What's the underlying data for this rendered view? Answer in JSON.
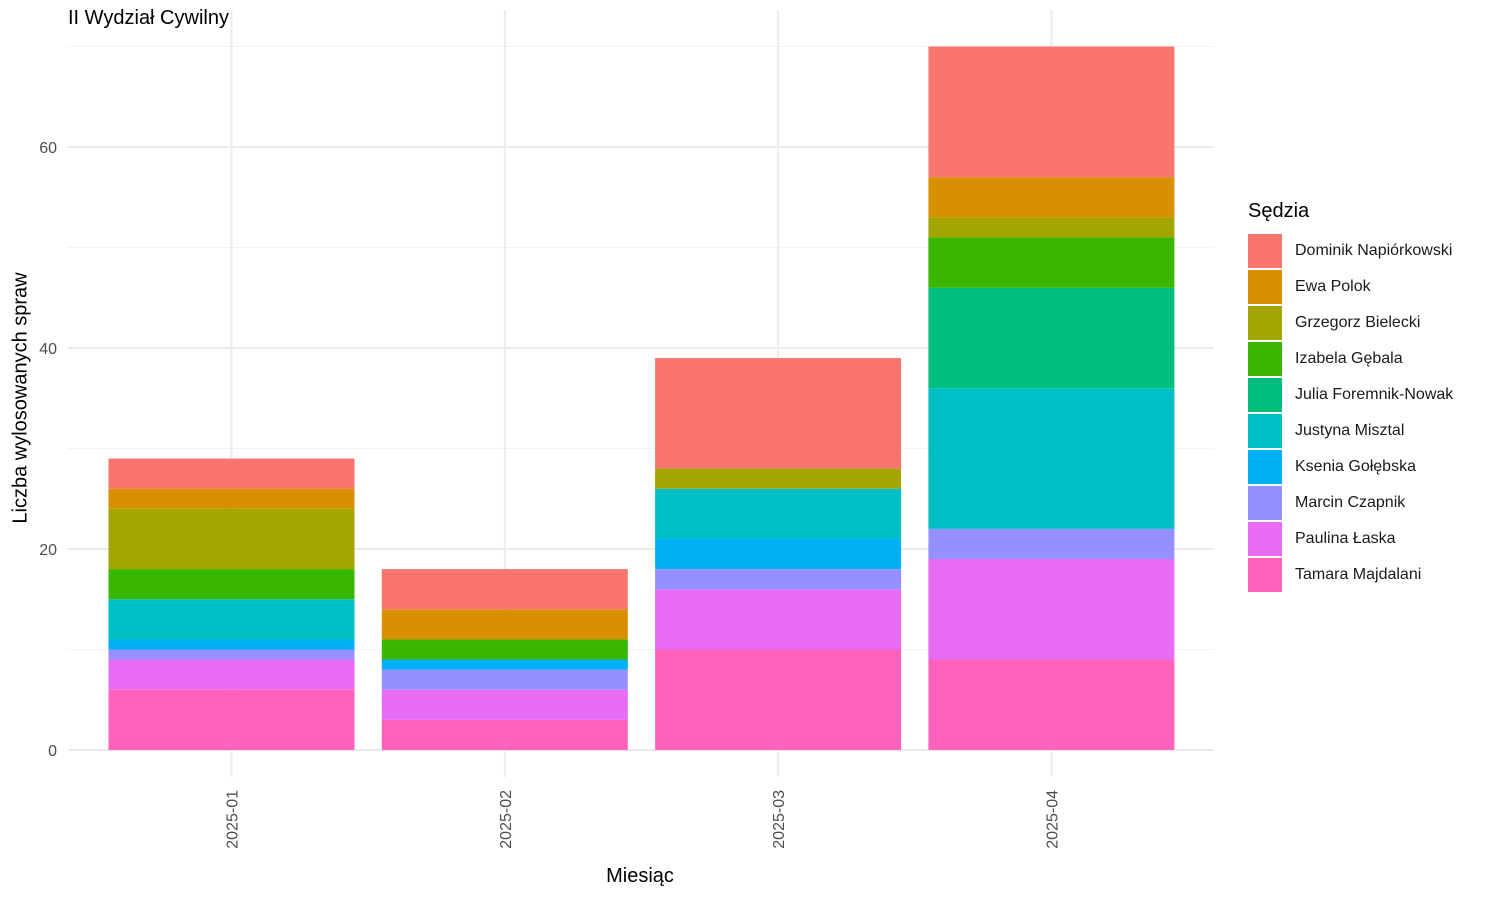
{
  "chart_data": {
    "type": "bar",
    "stacked": true,
    "title": "II Wydział Cywilny",
    "xlabel": "Miesiąc",
    "ylabel": "Liczba wylosowanych spraw",
    "categories": [
      "2025-01",
      "2025-02",
      "2025-03",
      "2025-04"
    ],
    "ylim": [
      0,
      72
    ],
    "yticks": [
      0,
      20,
      40,
      60
    ],
    "grid": true,
    "legend_title": "Sędzia",
    "legend_position": "right",
    "series": [
      {
        "name": "Dominik Napiórkowski",
        "color": "#F8766D",
        "values": [
          3,
          4,
          11,
          13
        ]
      },
      {
        "name": "Ewa Polok",
        "color": "#D89000",
        "values": [
          2,
          3,
          0,
          4
        ]
      },
      {
        "name": "Grzegorz Bielecki",
        "color": "#A3A500",
        "values": [
          6,
          0,
          2,
          2
        ]
      },
      {
        "name": "Izabela Gębala",
        "color": "#39B600",
        "values": [
          3,
          2,
          0,
          5
        ]
      },
      {
        "name": "Julia Foremnik-Nowak",
        "color": "#00BF7D",
        "values": [
          0,
          0,
          0,
          10
        ]
      },
      {
        "name": "Justyna Misztal",
        "color": "#00BFC4",
        "values": [
          4,
          0,
          5,
          14
        ]
      },
      {
        "name": "Ksenia Gołębska",
        "color": "#00B0F6",
        "values": [
          1,
          1,
          3,
          0
        ]
      },
      {
        "name": "Marcin Czapnik",
        "color": "#9590FF",
        "values": [
          1,
          2,
          2,
          3
        ]
      },
      {
        "name": "Paulina Łaska",
        "color": "#E76BF3",
        "values": [
          3,
          3,
          6,
          10
        ]
      },
      {
        "name": "Tamara Majdalani",
        "color": "#FF62BC",
        "values": [
          6,
          3,
          10,
          9
        ]
      }
    ]
  }
}
